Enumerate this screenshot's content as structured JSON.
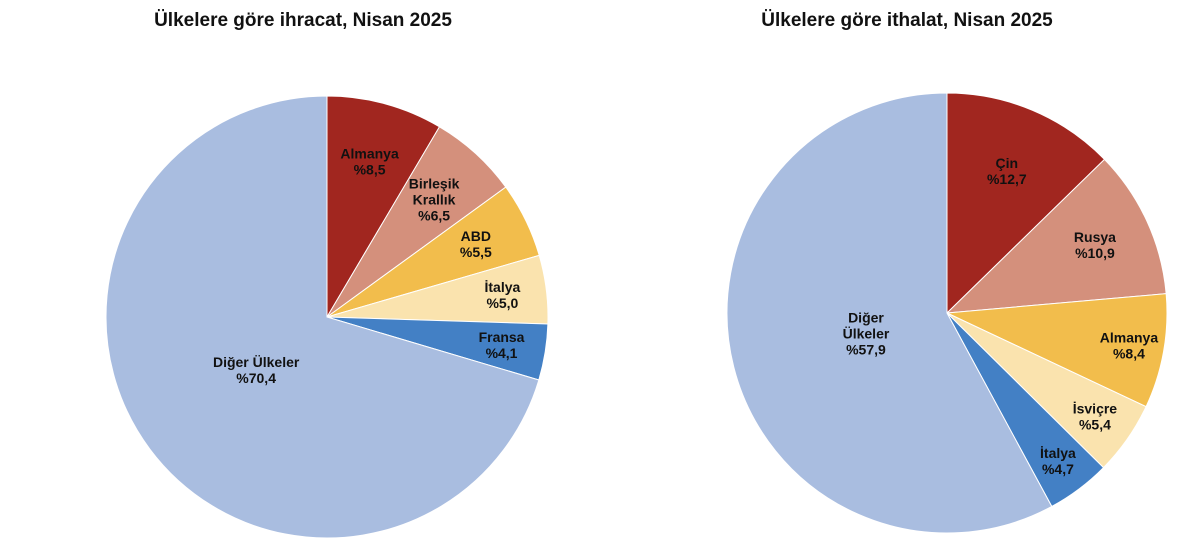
{
  "chart_data": [
    {
      "type": "pie",
      "title": "Ülkelere göre ihracat, Nisan 2025",
      "slices": [
        {
          "label": [
            "Almanya"
          ],
          "value_label": "%8,5",
          "value": 8.5,
          "color": "#a1261f",
          "label_color": "#111111"
        },
        {
          "label": [
            "Birleşik",
            "Krallık"
          ],
          "value_label": "%6,5",
          "value": 6.5,
          "color": "#d4907c",
          "label_color": "#111111"
        },
        {
          "label": [
            "ABD"
          ],
          "value_label": "%5,5",
          "value": 5.5,
          "color": "#f2bd4c",
          "label_color": "#111111"
        },
        {
          "label": [
            "İtalya"
          ],
          "value_label": "%5,0",
          "value": 5.0,
          "color": "#fae3ae",
          "label_color": "#111111"
        },
        {
          "label": [
            "Fransa"
          ],
          "value_label": "%4,1",
          "value": 4.1,
          "color": "#4380c5",
          "label_color": "#111111"
        },
        {
          "label": [
            "Diğer Ülkeler"
          ],
          "value_label": "%70,4",
          "value": 70.4,
          "color": "#a9bde0",
          "label_color": "#111111"
        }
      ]
    },
    {
      "type": "pie",
      "title": "Ülkelere göre ithalat, Nisan 2025",
      "slices": [
        {
          "label": [
            "Çin"
          ],
          "value_label": "%12,7",
          "value": 12.7,
          "color": "#a1261f",
          "label_color": "#111111"
        },
        {
          "label": [
            "Rusya"
          ],
          "value_label": "%10,9",
          "value": 10.9,
          "color": "#d4907c",
          "label_color": "#111111"
        },
        {
          "label": [
            "Almanya"
          ],
          "value_label": "%8,4",
          "value": 8.4,
          "color": "#f2bd4c",
          "label_color": "#111111"
        },
        {
          "label": [
            "İsviçre"
          ],
          "value_label": "%5,4",
          "value": 5.4,
          "color": "#fae3ae",
          "label_color": "#111111"
        },
        {
          "label": [
            "İtalya"
          ],
          "value_label": "%4,7",
          "value": 4.7,
          "color": "#4380c5",
          "label_color": "#111111"
        },
        {
          "label": [
            "Diğer",
            "Ülkeler"
          ],
          "value_label": "%57,9",
          "value": 57.9,
          "color": "#a9bde0",
          "label_color": "#111111"
        }
      ]
    }
  ]
}
